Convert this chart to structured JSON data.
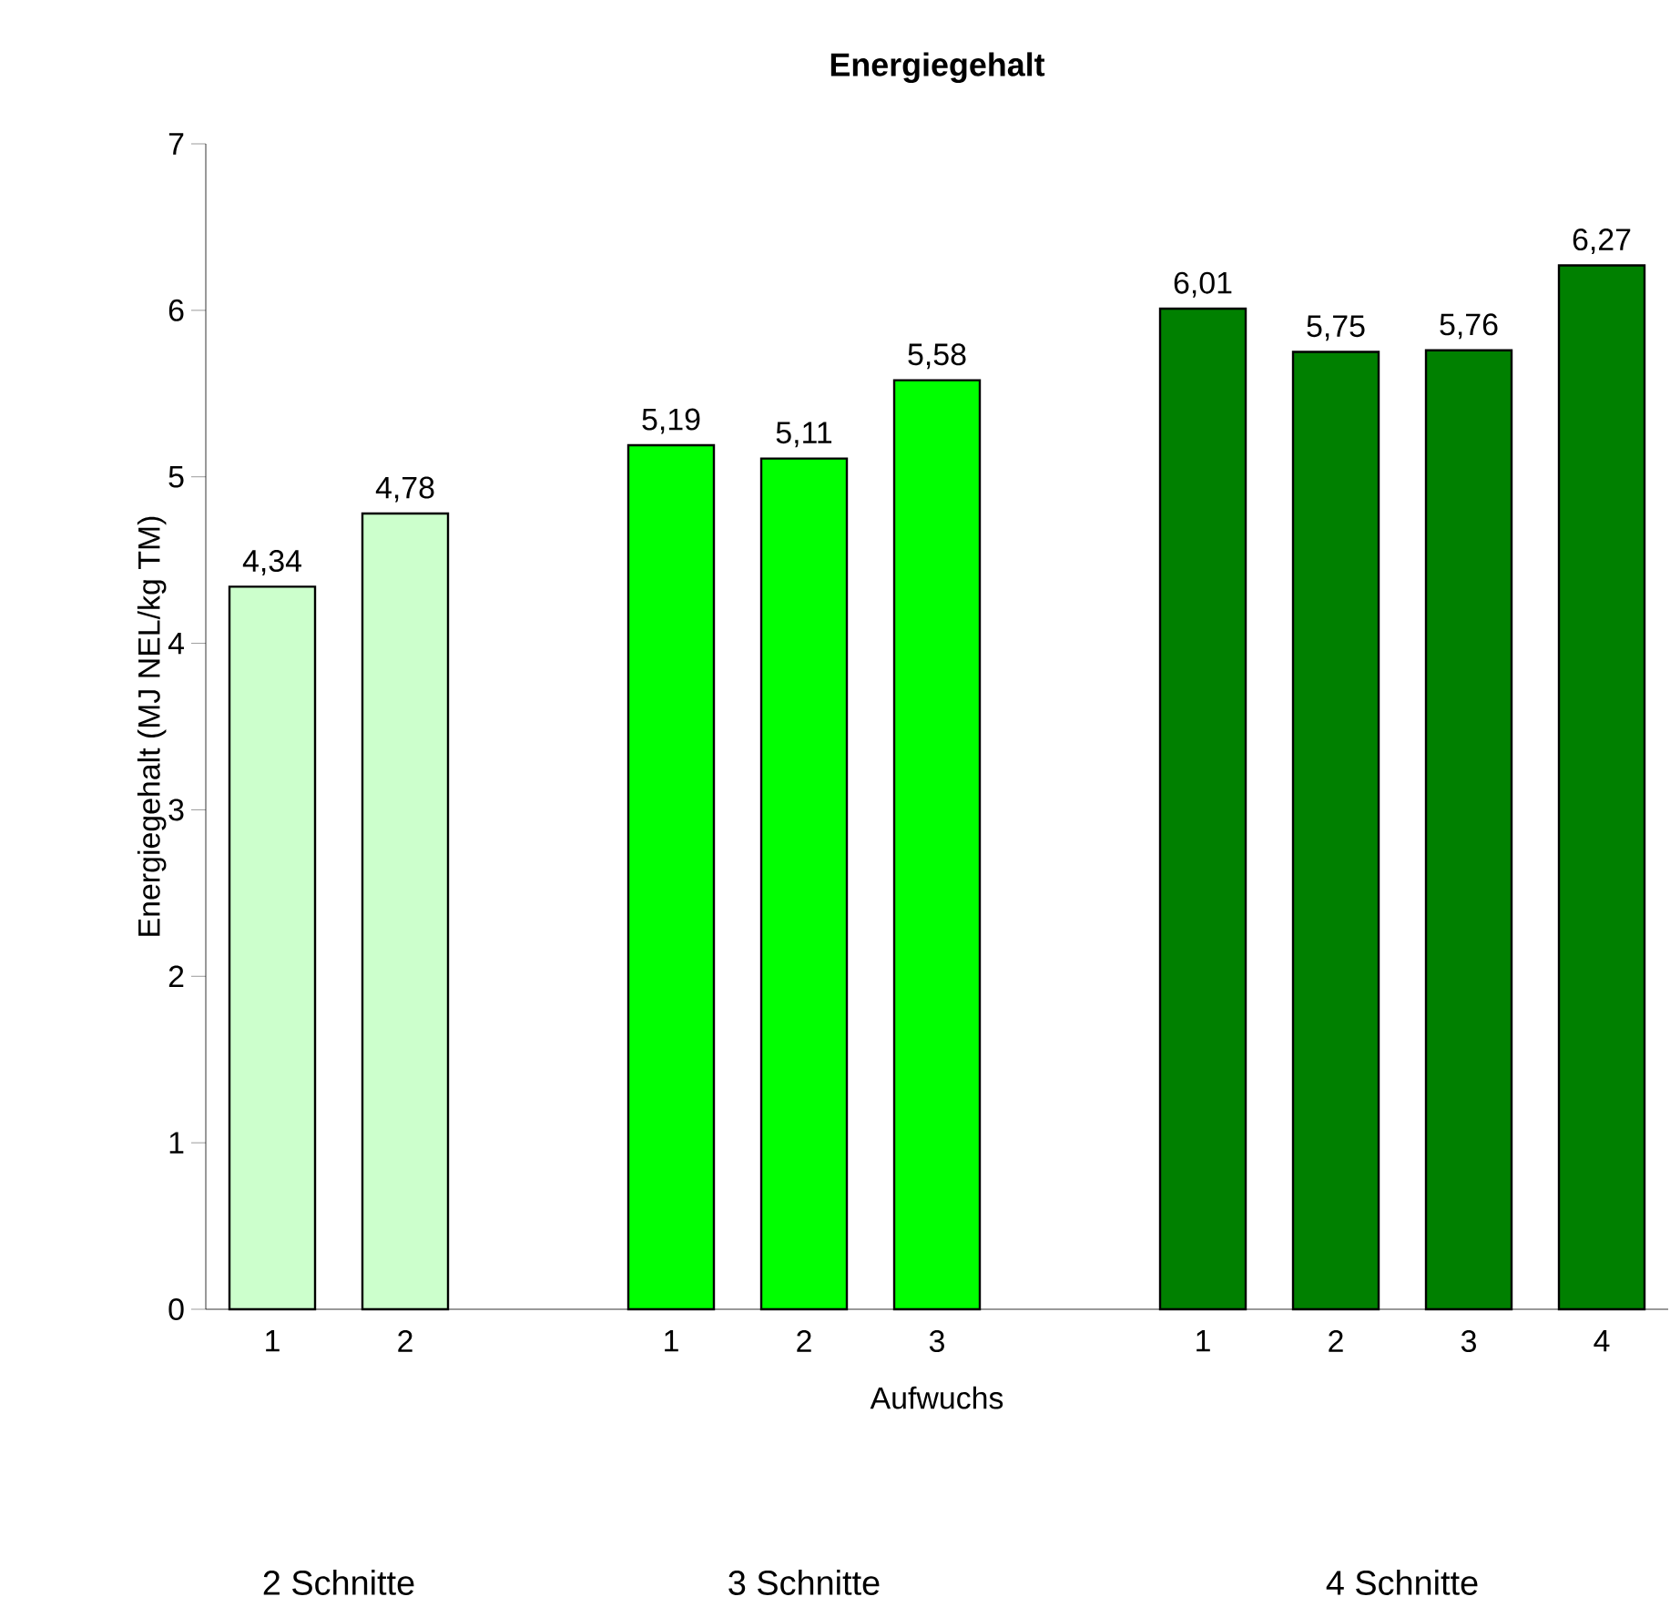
{
  "chart_data": {
    "type": "bar",
    "title": "Energiegehalt",
    "xlabel": "Aufwuchs",
    "ylabel": "Energiegehalt (MJ NEL/kg TM)",
    "categories": [
      "1",
      "2",
      null,
      "1",
      "2",
      "3",
      null,
      "1",
      "2",
      "3",
      "4"
    ],
    "values": [
      4.34,
      4.78,
      null,
      5.19,
      5.11,
      5.58,
      null,
      6.01,
      5.75,
      5.76,
      6.27
    ],
    "value_labels": [
      "4,34",
      "4,78",
      null,
      "5,19",
      "5,11",
      "5,58",
      null,
      "6,01",
      "5,75",
      "5,76",
      "6,27"
    ],
    "colors": [
      "#ccffcc",
      "#ccffcc",
      null,
      "#00ff00",
      "#00ff00",
      "#00ff00",
      null,
      "#008000",
      "#008000",
      "#008000",
      "#008000"
    ],
    "ylim": [
      0,
      7
    ],
    "yticks": [
      0,
      1,
      2,
      3,
      4,
      5,
      6,
      7
    ],
    "annotations": [
      "2 Schnitte",
      "3 Schnitte",
      "4 Schnitte"
    ]
  }
}
